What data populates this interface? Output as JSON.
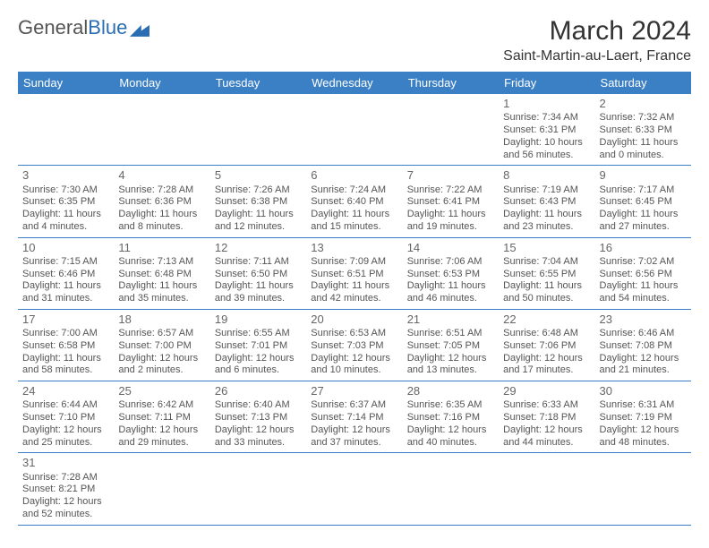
{
  "brand": {
    "part1": "General",
    "part2": "Blue"
  },
  "title": "March 2024",
  "location": "Saint-Martin-au-Laert, France",
  "colors": {
    "header_bg": "#3b7fc4",
    "header_fg": "#ffffff",
    "border": "#3b7fc4",
    "text": "#555555",
    "brand_gray": "#555555",
    "brand_blue": "#2a6db3"
  },
  "weekdays": [
    "Sunday",
    "Monday",
    "Tuesday",
    "Wednesday",
    "Thursday",
    "Friday",
    "Saturday"
  ],
  "weeks": [
    [
      null,
      null,
      null,
      null,
      null,
      {
        "n": "1",
        "sr": "Sunrise: 7:34 AM",
        "ss": "Sunset: 6:31 PM",
        "dl": "Daylight: 10 hours and 56 minutes."
      },
      {
        "n": "2",
        "sr": "Sunrise: 7:32 AM",
        "ss": "Sunset: 6:33 PM",
        "dl": "Daylight: 11 hours and 0 minutes."
      }
    ],
    [
      {
        "n": "3",
        "sr": "Sunrise: 7:30 AM",
        "ss": "Sunset: 6:35 PM",
        "dl": "Daylight: 11 hours and 4 minutes."
      },
      {
        "n": "4",
        "sr": "Sunrise: 7:28 AM",
        "ss": "Sunset: 6:36 PM",
        "dl": "Daylight: 11 hours and 8 minutes."
      },
      {
        "n": "5",
        "sr": "Sunrise: 7:26 AM",
        "ss": "Sunset: 6:38 PM",
        "dl": "Daylight: 11 hours and 12 minutes."
      },
      {
        "n": "6",
        "sr": "Sunrise: 7:24 AM",
        "ss": "Sunset: 6:40 PM",
        "dl": "Daylight: 11 hours and 15 minutes."
      },
      {
        "n": "7",
        "sr": "Sunrise: 7:22 AM",
        "ss": "Sunset: 6:41 PM",
        "dl": "Daylight: 11 hours and 19 minutes."
      },
      {
        "n": "8",
        "sr": "Sunrise: 7:19 AM",
        "ss": "Sunset: 6:43 PM",
        "dl": "Daylight: 11 hours and 23 minutes."
      },
      {
        "n": "9",
        "sr": "Sunrise: 7:17 AM",
        "ss": "Sunset: 6:45 PM",
        "dl": "Daylight: 11 hours and 27 minutes."
      }
    ],
    [
      {
        "n": "10",
        "sr": "Sunrise: 7:15 AM",
        "ss": "Sunset: 6:46 PM",
        "dl": "Daylight: 11 hours and 31 minutes."
      },
      {
        "n": "11",
        "sr": "Sunrise: 7:13 AM",
        "ss": "Sunset: 6:48 PM",
        "dl": "Daylight: 11 hours and 35 minutes."
      },
      {
        "n": "12",
        "sr": "Sunrise: 7:11 AM",
        "ss": "Sunset: 6:50 PM",
        "dl": "Daylight: 11 hours and 39 minutes."
      },
      {
        "n": "13",
        "sr": "Sunrise: 7:09 AM",
        "ss": "Sunset: 6:51 PM",
        "dl": "Daylight: 11 hours and 42 minutes."
      },
      {
        "n": "14",
        "sr": "Sunrise: 7:06 AM",
        "ss": "Sunset: 6:53 PM",
        "dl": "Daylight: 11 hours and 46 minutes."
      },
      {
        "n": "15",
        "sr": "Sunrise: 7:04 AM",
        "ss": "Sunset: 6:55 PM",
        "dl": "Daylight: 11 hours and 50 minutes."
      },
      {
        "n": "16",
        "sr": "Sunrise: 7:02 AM",
        "ss": "Sunset: 6:56 PM",
        "dl": "Daylight: 11 hours and 54 minutes."
      }
    ],
    [
      {
        "n": "17",
        "sr": "Sunrise: 7:00 AM",
        "ss": "Sunset: 6:58 PM",
        "dl": "Daylight: 11 hours and 58 minutes."
      },
      {
        "n": "18",
        "sr": "Sunrise: 6:57 AM",
        "ss": "Sunset: 7:00 PM",
        "dl": "Daylight: 12 hours and 2 minutes."
      },
      {
        "n": "19",
        "sr": "Sunrise: 6:55 AM",
        "ss": "Sunset: 7:01 PM",
        "dl": "Daylight: 12 hours and 6 minutes."
      },
      {
        "n": "20",
        "sr": "Sunrise: 6:53 AM",
        "ss": "Sunset: 7:03 PM",
        "dl": "Daylight: 12 hours and 10 minutes."
      },
      {
        "n": "21",
        "sr": "Sunrise: 6:51 AM",
        "ss": "Sunset: 7:05 PM",
        "dl": "Daylight: 12 hours and 13 minutes."
      },
      {
        "n": "22",
        "sr": "Sunrise: 6:48 AM",
        "ss": "Sunset: 7:06 PM",
        "dl": "Daylight: 12 hours and 17 minutes."
      },
      {
        "n": "23",
        "sr": "Sunrise: 6:46 AM",
        "ss": "Sunset: 7:08 PM",
        "dl": "Daylight: 12 hours and 21 minutes."
      }
    ],
    [
      {
        "n": "24",
        "sr": "Sunrise: 6:44 AM",
        "ss": "Sunset: 7:10 PM",
        "dl": "Daylight: 12 hours and 25 minutes."
      },
      {
        "n": "25",
        "sr": "Sunrise: 6:42 AM",
        "ss": "Sunset: 7:11 PM",
        "dl": "Daylight: 12 hours and 29 minutes."
      },
      {
        "n": "26",
        "sr": "Sunrise: 6:40 AM",
        "ss": "Sunset: 7:13 PM",
        "dl": "Daylight: 12 hours and 33 minutes."
      },
      {
        "n": "27",
        "sr": "Sunrise: 6:37 AM",
        "ss": "Sunset: 7:14 PM",
        "dl": "Daylight: 12 hours and 37 minutes."
      },
      {
        "n": "28",
        "sr": "Sunrise: 6:35 AM",
        "ss": "Sunset: 7:16 PM",
        "dl": "Daylight: 12 hours and 40 minutes."
      },
      {
        "n": "29",
        "sr": "Sunrise: 6:33 AM",
        "ss": "Sunset: 7:18 PM",
        "dl": "Daylight: 12 hours and 44 minutes."
      },
      {
        "n": "30",
        "sr": "Sunrise: 6:31 AM",
        "ss": "Sunset: 7:19 PM",
        "dl": "Daylight: 12 hours and 48 minutes."
      }
    ],
    [
      {
        "n": "31",
        "sr": "Sunrise: 7:28 AM",
        "ss": "Sunset: 8:21 PM",
        "dl": "Daylight: 12 hours and 52 minutes."
      },
      null,
      null,
      null,
      null,
      null,
      null
    ]
  ]
}
